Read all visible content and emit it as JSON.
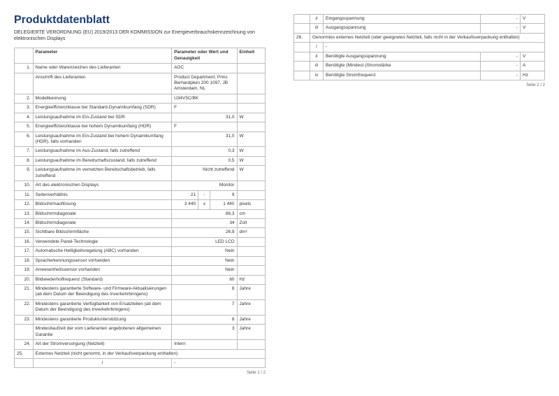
{
  "title": "Produktdatenblatt",
  "subtitle": "DELEGIERTE VERORDNUNG (EU) 2019/2013 DER KOMMISSION zur Energieverbrauchskennzeichnung von elektronischen Displays",
  "headers": {
    "param": "Parameter",
    "val": "Parameter oder Wert und Genauigkeit",
    "unit": "Einheit"
  },
  "r": {
    "1": {
      "p": "Name oder Warenzeichen des Lieferanten",
      "v": "AOC"
    },
    "1b": {
      "p": "Anschrift des Lieferanten",
      "v": "Product Department, Prins Berhardplein 200 1097, JB Amsterdam, NL"
    },
    "2": {
      "p": "Modellkennung",
      "v": "U34V5C/BK"
    },
    "3": {
      "p": "Energieeffizienzklasse bei Standard-Dynamikumfang (SDR)",
      "v": "F"
    },
    "4": {
      "p": "Leistungsaufnahme im Ein-Zustand bei SDR",
      "v": "31,0",
      "u": "W"
    },
    "5": {
      "p": "Energieeffizienzklasse bei hohem Dynamikumfang (HDR)",
      "v": "F"
    },
    "6": {
      "p": "Leistungsaufnahme im Ein-Zustand bei hohem Dynamikumfang (HDR), falls vorhanden",
      "v": "31,0",
      "u": "W"
    },
    "7": {
      "p": "Leistungsaufnahme im Aus-Zustand, falls zutreffend",
      "v": "0,3",
      "u": "W"
    },
    "8": {
      "p": "Leistungsaufnahme im Bereitschaftszustand, falls zutreffend",
      "v": "0,5",
      "u": "W"
    },
    "9": {
      "p": "Leistungsaufnahme im vernetzten Bereitschaftsbetrieb, falls zutreffend",
      "v": "Nicht zutreffend",
      "u": "W"
    },
    "10": {
      "p": "Art des elektronischen Displays",
      "v": "Monitor"
    },
    "11": {
      "p": "Seitenverhältnis",
      "a": "21",
      "s": ":",
      "b": "9"
    },
    "12": {
      "p": "Bildschirmauflösung",
      "a": "3 440",
      "s": "x",
      "b": "1 440",
      "u": "pixels"
    },
    "13": {
      "p": "Bildschirmdiagonale",
      "v": "86,3",
      "u": "cm"
    },
    "14": {
      "p": "Bildschirmdiagonale",
      "v": "34",
      "u": "Zoll"
    },
    "15": {
      "p": "Sichtbare Bildschirmfläche",
      "v": "26,9",
      "u": "dm²"
    },
    "16": {
      "p": "Verwendete Panel-Technologie",
      "v": "LED LCD"
    },
    "17": {
      "p": "Automatische Helligkeitsregelung (ABC) vorhanden",
      "v": "Nein"
    },
    "18": {
      "p": "Spracherkennungssensor vorhanden",
      "v": "Nein"
    },
    "19": {
      "p": "Anwesenheitssensor vorhanden",
      "v": "Nein"
    },
    "20": {
      "p": "Bildwiederholfrequenz (Standard)",
      "v": "60",
      "u": "Hz"
    },
    "21": {
      "p": "Mindestens garantierte Software- und Firmware-Aktualisierungen (ab dem Datum der Beendigung des Inverkehrbringens)",
      "v": "8",
      "u": "Jahre"
    },
    "22": {
      "p": "Mindestens garantierte Verfügbarkeit von Ersatzteilen (ab dem Datum der Beendigung des Inverkehrbringens)",
      "v": "7",
      "u": "Jahre"
    },
    "23": {
      "p": "Mindestens garantierte Produktunterstützung",
      "v": "8",
      "u": "Jahre"
    },
    "23b": {
      "p": "Mindestlaufzeit der vom Lieferanten angebotenen allgemeinen Garantie",
      "v": "3",
      "u": "Jahre"
    },
    "24": {
      "p": "Art der Stromversorgung (Netzteil)",
      "v": "Intern"
    },
    "25": {
      "p": "Externes Netzteil (nicht genormt, in der Verkaufsverpackung enthalten)"
    },
    "25i": {
      "p": "-"
    },
    "p2": {
      "ii": {
        "p": "Eingangsspannung",
        "v": "-",
        "u": "V"
      },
      "iii": {
        "p": "Ausgangsspannung",
        "v": "-",
        "u": "V"
      },
      "26": {
        "p": "Genormtes externes Netzteil (oder geeignetes Netzteil, falls nicht in der Verkaufsverpackung enthalten)"
      },
      "26i": {
        "p": "-"
      },
      "26ii": {
        "p": "Benötigte Ausgangsspannung",
        "v": "-",
        "u": "V"
      },
      "26iii": {
        "p": "Benötigte (Mindest-)Stromstärke",
        "v": "-",
        "u": "A"
      },
      "26iv": {
        "p": "Benötigte Stromfrequenz",
        "v": "-",
        "u": "Hz"
      }
    }
  },
  "footer1": "Seite 1 / 2",
  "footer2": "Seite 2 / 2"
}
